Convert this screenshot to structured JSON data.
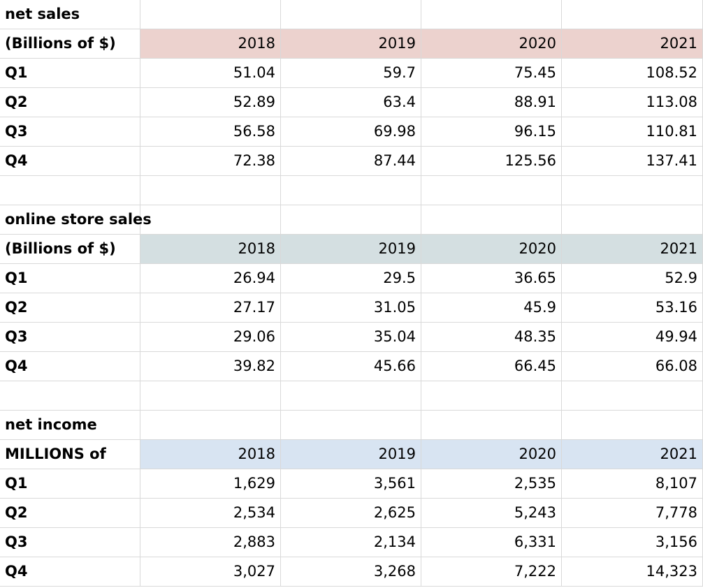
{
  "colors": {
    "net_sales_header_bg": "#ecd2ce",
    "online_store_header_bg": "#d4dfe1",
    "net_income_header_bg": "#d8e4f2",
    "grid_line": "#d9d9d9"
  },
  "tables": [
    {
      "title": "net sales",
      "unit_label": "(Billions of $)",
      "years": [
        "2018",
        "2019",
        "2020",
        "2021"
      ],
      "rows": [
        {
          "label": "Q1",
          "values": [
            "51.04",
            "59.7",
            "75.45",
            "108.52"
          ]
        },
        {
          "label": "Q2",
          "values": [
            "52.89",
            "63.4",
            "88.91",
            "113.08"
          ]
        },
        {
          "label": "Q3",
          "values": [
            "56.58",
            "69.98",
            "96.15",
            "110.81"
          ]
        },
        {
          "label": "Q4",
          "values": [
            "72.38",
            "87.44",
            "125.56",
            "137.41"
          ]
        }
      ]
    },
    {
      "title": "online store sales",
      "unit_label": "(Billions of $)",
      "years": [
        "2018",
        "2019",
        "2020",
        "2021"
      ],
      "rows": [
        {
          "label": "Q1",
          "values": [
            "26.94",
            "29.5",
            "36.65",
            "52.9"
          ]
        },
        {
          "label": "Q2",
          "values": [
            "27.17",
            "31.05",
            "45.9",
            "53.16"
          ]
        },
        {
          "label": "Q3",
          "values": [
            "29.06",
            "35.04",
            "48.35",
            "49.94"
          ]
        },
        {
          "label": "Q4",
          "values": [
            "39.82",
            "45.66",
            "66.45",
            "66.08"
          ]
        }
      ]
    },
    {
      "title": "net income",
      "unit_label": "MILLIONS of",
      "years": [
        "2018",
        "2019",
        "2020",
        "2021"
      ],
      "rows": [
        {
          "label": "Q1",
          "values": [
            "1,629",
            "3,561",
            "2,535",
            "8,107"
          ]
        },
        {
          "label": "Q2",
          "values": [
            "2,534",
            "2,625",
            "5,243",
            "7,778"
          ]
        },
        {
          "label": "Q3",
          "values": [
            "2,883",
            "2,134",
            "6,331",
            "3,156"
          ]
        },
        {
          "label": "Q4",
          "values": [
            "3,027",
            "3,268",
            "7,222",
            "14,323"
          ]
        }
      ]
    }
  ]
}
